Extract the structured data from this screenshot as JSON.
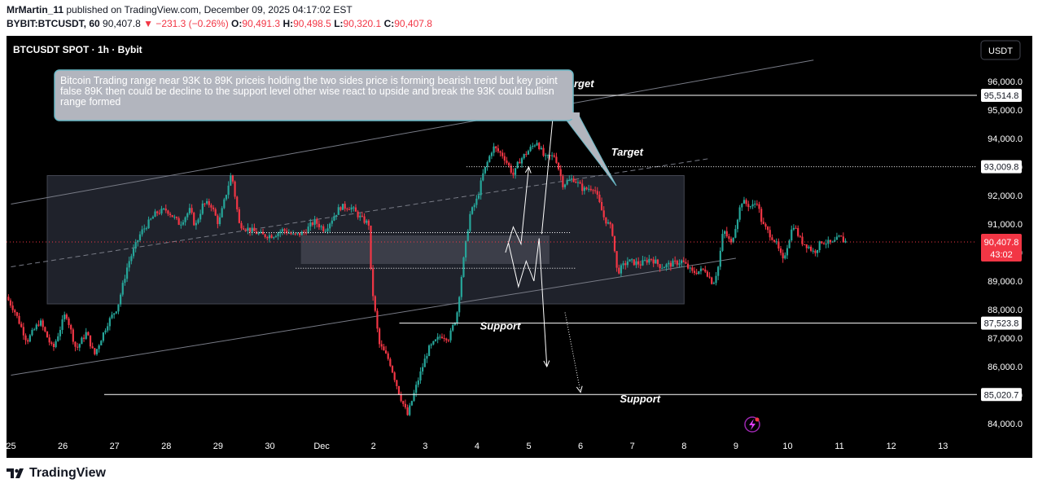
{
  "header": {
    "author": "MrMartin_11",
    "published": "published on TradingView.com, December 09, 2025 04:17:02 EST",
    "symbol": "BYBIT:BTCUSDT, 60",
    "last": "90,407.8",
    "change": "▼ −231.3 (−0.26%)",
    "o_label": "O:",
    "o": "90,491.3",
    "h_label": "H:",
    "h": "90,498.5",
    "l_label": "L:",
    "l": "90,320.1",
    "c_label": "C:",
    "c": "90,407.8"
  },
  "chart_title": "BTCUSDT SPOT · 1h · Bybit",
  "currency_button": "USDT",
  "annotation": "Bitcoin Trading range near 93K to 89K priceis holding the two sides price is forming bearish trend but key point false 89K then could be decline to the support level other wise react to upside and break the 93K could bullisn range formed",
  "price_tag": {
    "price": "90,407.8",
    "countdown": "43:02"
  },
  "footer": {
    "brand": "TradingView"
  },
  "colors": {
    "up": "#26a69a",
    "down": "#f23645",
    "background": "#000000",
    "annotation_bg": "#b2b5be",
    "price_tag": "#f23645"
  },
  "chart_data": {
    "type": "candlestick",
    "ylim": [
      83800,
      96400
    ],
    "y_ticks": [
      "96,000.0",
      "95,000.0",
      "94,000.0",
      "93,000.0",
      "92,000.0",
      "91,000.0",
      "90,000.0",
      "89,000.0",
      "88,000.0",
      "87,000.0",
      "86,000.0",
      "85,000.0",
      "84,000.0"
    ],
    "x_ticks": [
      "25",
      "26",
      "27",
      "28",
      "29",
      "30",
      "Dec",
      "2",
      "3",
      "4",
      "5",
      "6",
      "7",
      "8",
      "9",
      "10",
      "11",
      "12",
      "13"
    ],
    "price_labels": [
      "95,514.8",
      "93,009.8",
      "87,523.8",
      "85,020.7"
    ],
    "text_labels": [
      {
        "text": "Target",
        "day": 10.95,
        "price": 95800
      },
      {
        "text": "Target",
        "day": 11.9,
        "price": 93400
      },
      {
        "text": "Support",
        "day": 9.45,
        "price": 87300
      },
      {
        "text": "Support",
        "day": 12.15,
        "price": 84750
      }
    ],
    "horizontal_levels": [
      {
        "price": 95514.8,
        "from_day": 8.8
      },
      {
        "price": 93009.8,
        "from_day": 8.8,
        "dotted": true
      },
      {
        "price": 87523.8,
        "from_day": 7.5
      },
      {
        "price": 85020.7,
        "from_day": 1.8
      },
      {
        "price": 90700,
        "from_day": 4.6,
        "to_day": 10.8,
        "dotted": true
      },
      {
        "price": 89450,
        "from_day": 5.5,
        "to_day": 10.9,
        "dotted": true
      }
    ],
    "range_box": {
      "from_day": 0.7,
      "to_day": 13.0,
      "top": 92700,
      "bottom": 88200
    },
    "inner_box": {
      "from_day": 5.6,
      "to_day": 10.4,
      "top": 90600,
      "bottom": 89600
    },
    "channel": {
      "upper": [
        [
          0,
          91700
        ],
        [
          15.5,
          96750
        ]
      ],
      "mid": [
        [
          0,
          89500
        ],
        [
          13.5,
          93300
        ]
      ],
      "lower": [
        [
          0,
          85700
        ],
        [
          14.0,
          89800
        ]
      ]
    },
    "projection_paths": [
      {
        "points": [
          [
            9.55,
            90000
          ],
          [
            9.7,
            90900
          ],
          [
            9.85,
            90300
          ],
          [
            10.0,
            93000
          ]
        ]
      },
      {
        "points": [
          [
            9.6,
            90400
          ],
          [
            9.8,
            88800
          ],
          [
            9.95,
            89700
          ],
          [
            10.1,
            89000
          ],
          [
            10.2,
            90500
          ],
          [
            10.35,
            86000
          ]
        ]
      },
      {
        "points": [
          [
            10.25,
            90650
          ],
          [
            10.5,
            95400
          ]
        ]
      },
      {
        "points": [
          [
            10.7,
            87900
          ],
          [
            11.0,
            85100
          ]
        ],
        "dotted": true
      }
    ],
    "keypoints": [
      [
        -0.3,
        89200
      ],
      [
        0.1,
        88000
      ],
      [
        0.35,
        86900
      ],
      [
        0.6,
        87600
      ],
      [
        0.85,
        86600
      ],
      [
        1.1,
        87900
      ],
      [
        1.3,
        86600
      ],
      [
        1.5,
        87200
      ],
      [
        1.65,
        86400
      ],
      [
        1.9,
        87500
      ],
      [
        2.1,
        88100
      ],
      [
        2.3,
        89600
      ],
      [
        2.55,
        90700
      ],
      [
        2.85,
        91400
      ],
      [
        3.05,
        91500
      ],
      [
        3.3,
        91000
      ],
      [
        3.5,
        91500
      ],
      [
        3.6,
        90900
      ],
      [
        3.75,
        91700
      ],
      [
        3.9,
        91700
      ],
      [
        4.05,
        91000
      ],
      [
        4.3,
        92800
      ],
      [
        4.45,
        91000
      ],
      [
        4.65,
        90800
      ],
      [
        4.9,
        90600
      ],
      [
        5.1,
        90600
      ],
      [
        5.3,
        90800
      ],
      [
        5.5,
        90600
      ],
      [
        5.7,
        90700
      ],
      [
        5.9,
        91100
      ],
      [
        6.1,
        90800
      ],
      [
        6.4,
        91600
      ],
      [
        6.6,
        91600
      ],
      [
        6.8,
        91200
      ],
      [
        6.95,
        91000
      ],
      [
        7.0,
        89000
      ],
      [
        7.15,
        86800
      ],
      [
        7.35,
        86200
      ],
      [
        7.55,
        85000
      ],
      [
        7.7,
        84300
      ],
      [
        7.9,
        85500
      ],
      [
        8.1,
        86600
      ],
      [
        8.35,
        87100
      ],
      [
        8.5,
        87000
      ],
      [
        8.65,
        87800
      ],
      [
        8.75,
        89300
      ],
      [
        8.9,
        91300
      ],
      [
        9.05,
        91900
      ],
      [
        9.15,
        92700
      ],
      [
        9.35,
        93700
      ],
      [
        9.55,
        93400
      ],
      [
        9.75,
        92700
      ],
      [
        9.85,
        93200
      ],
      [
        10.05,
        93600
      ],
      [
        10.2,
        93900
      ],
      [
        10.35,
        93300
      ],
      [
        10.55,
        93400
      ],
      [
        10.7,
        92400
      ],
      [
        10.9,
        92600
      ],
      [
        11.1,
        92200
      ],
      [
        11.3,
        92300
      ],
      [
        11.5,
        91200
      ],
      [
        11.65,
        90800
      ],
      [
        11.75,
        89300
      ],
      [
        11.95,
        89700
      ],
      [
        12.2,
        89600
      ],
      [
        12.4,
        89800
      ],
      [
        12.6,
        89500
      ],
      [
        12.8,
        89600
      ],
      [
        13.0,
        89700
      ],
      [
        13.2,
        89300
      ],
      [
        13.45,
        89400
      ],
      [
        13.6,
        88900
      ],
      [
        13.7,
        89500
      ],
      [
        13.8,
        90800
      ],
      [
        13.95,
        90300
      ],
      [
        14.15,
        91800
      ],
      [
        14.35,
        91600
      ],
      [
        14.45,
        91800
      ],
      [
        14.55,
        91000
      ],
      [
        14.8,
        90400
      ],
      [
        14.95,
        89700
      ],
      [
        15.15,
        91000
      ],
      [
        15.3,
        90400
      ],
      [
        15.45,
        90200
      ],
      [
        15.55,
        90000
      ],
      [
        15.7,
        90400
      ],
      [
        15.9,
        90300
      ],
      [
        16.05,
        90550
      ],
      [
        16.12,
        90408
      ]
    ]
  }
}
